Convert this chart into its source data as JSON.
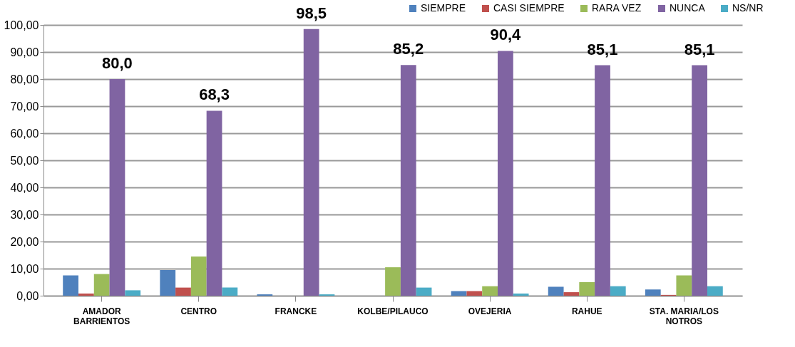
{
  "chart_data": {
    "type": "bar",
    "categories": [
      "AMADOR BARRIENTOS",
      "CENTRO",
      "FRANCKE",
      "KOLBE/PILAUCO",
      "OVEJERIA",
      "RAHUE",
      "STA. MARIA/LOS NOTROS"
    ],
    "series": [
      {
        "name": "SIEMPRE",
        "color": "#4f81bd",
        "values": [
          7.5,
          9.5,
          0.5,
          0,
          1.7,
          3.3,
          2.3
        ]
      },
      {
        "name": "CASI SIEMPRE",
        "color": "#c0504d",
        "values": [
          0.8,
          3,
          0,
          0,
          1.7,
          1.3,
          0.3
        ]
      },
      {
        "name": "RARA VEZ",
        "color": "#9bbb59",
        "values": [
          8,
          14.5,
          0,
          10.5,
          3.5,
          5,
          7.5
        ]
      },
      {
        "name": "NUNCA",
        "color": "#8064a2",
        "values": [
          80.0,
          68.3,
          98.5,
          85.2,
          90.4,
          85.1,
          85.1
        ],
        "value_labels": [
          "80,0",
          "68,3",
          "98,5",
          "85,2",
          "90,4",
          "85,1",
          "85,1"
        ]
      },
      {
        "name": "NS/NR",
        "color": "#4bacc6",
        "values": [
          2,
          3,
          0.5,
          3,
          0.8,
          3.5,
          3.5
        ]
      }
    ],
    "ylim": [
      0,
      100
    ],
    "yticks": [
      {
        "value": 0,
        "label": "0,00"
      },
      {
        "value": 10,
        "label": "10,00"
      },
      {
        "value": 20,
        "label": "20,00"
      },
      {
        "value": 30,
        "label": "30,00"
      },
      {
        "value": 40,
        "label": "40,00"
      },
      {
        "value": 50,
        "label": "50,00"
      },
      {
        "value": 60,
        "label": "60,00"
      },
      {
        "value": 70,
        "label": "70,00"
      },
      {
        "value": 80,
        "label": "80,00"
      },
      {
        "value": 90,
        "label": "90,00"
      },
      {
        "value": 100,
        "label": "100,00"
      }
    ],
    "grid": "y",
    "legend": "top right"
  }
}
